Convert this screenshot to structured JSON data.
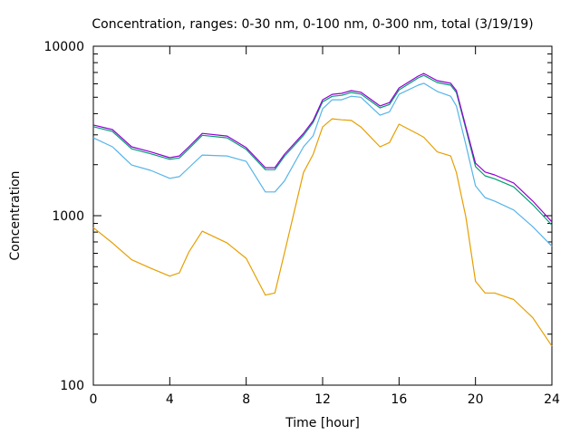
{
  "chart_data": {
    "type": "line",
    "title": "Concentration, ranges: 0-30 nm, 0-100 nm, 0-300 nm, total (3/19/19)",
    "xlabel": "Time [hour]",
    "ylabel": "Concentration",
    "xlim": [
      0,
      24
    ],
    "ylim": [
      100,
      10000
    ],
    "yscale": "log",
    "xticks": [
      "0",
      "4",
      "8",
      "12",
      "16",
      "20",
      "24"
    ],
    "yticks": [
      "100",
      "1000",
      "10000"
    ],
    "grid": false,
    "x": [
      0,
      1,
      2,
      3,
      4,
      4.5,
      5,
      5.7,
      7,
      8,
      9,
      9.5,
      10,
      11,
      11.5,
      12,
      12.5,
      13,
      13.5,
      14,
      15,
      15.5,
      16,
      17,
      17.3,
      18,
      18.7,
      19,
      19.5,
      20,
      20.5,
      21,
      22,
      23,
      24
    ],
    "series": [
      {
        "name": "total",
        "color": "#9400d3",
        "values": [
          3430,
          3220,
          2550,
          2380,
          2200,
          2250,
          2550,
          3060,
          2950,
          2520,
          1920,
          1920,
          2300,
          3060,
          3640,
          4830,
          5200,
          5270,
          5470,
          5350,
          4440,
          4650,
          5670,
          6660,
          6900,
          6260,
          6040,
          5470,
          3340,
          2040,
          1810,
          1740,
          1560,
          1220,
          920
        ]
      },
      {
        "name": "0-300 nm",
        "color": "#009e73",
        "values": [
          3350,
          3140,
          2480,
          2320,
          2150,
          2190,
          2480,
          2980,
          2880,
          2460,
          1870,
          1870,
          2240,
          2980,
          3550,
          4700,
          5060,
          5130,
          5330,
          5220,
          4330,
          4530,
          5520,
          6500,
          6730,
          6100,
          5890,
          5330,
          3250,
          1950,
          1720,
          1650,
          1480,
          1160,
          880
        ]
      },
      {
        "name": "0-100 nm",
        "color": "#56b4e9",
        "values": [
          2880,
          2550,
          1990,
          1850,
          1660,
          1700,
          1920,
          2280,
          2250,
          2090,
          1380,
          1380,
          1600,
          2550,
          2960,
          4270,
          4830,
          4830,
          5070,
          5000,
          3920,
          4100,
          5200,
          5890,
          6040,
          5410,
          5070,
          4440,
          2620,
          1500,
          1280,
          1220,
          1080,
          860,
          660
        ]
      },
      {
        "name": "0-30 nm",
        "color": "#e69f00",
        "values": [
          850,
          690,
          550,
          490,
          440,
          460,
          610,
          810,
          690,
          560,
          340,
          350,
          600,
          1800,
          2300,
          3340,
          3730,
          3680,
          3650,
          3340,
          2550,
          2700,
          3470,
          3030,
          2900,
          2380,
          2250,
          1800,
          980,
          410,
          350,
          350,
          320,
          250,
          170
        ]
      }
    ]
  }
}
